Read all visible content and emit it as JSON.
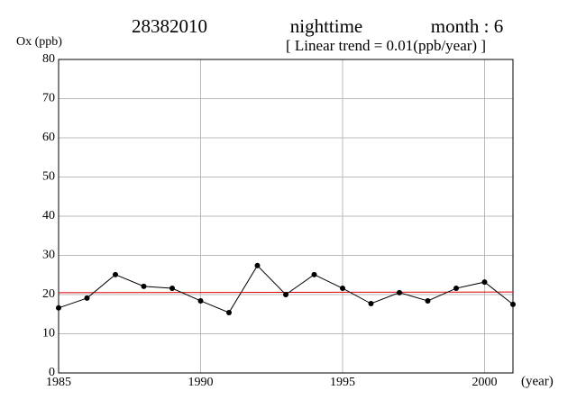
{
  "chart_data": {
    "type": "line",
    "title": "28382010",
    "subtitle": "nighttime",
    "month_label": "month : 6",
    "annotation": "[ Linear trend = 0.01(ppb/year) ]",
    "y_label": "Ox (ppb)",
    "x_label": "(year)",
    "x": [
      1985,
      1986,
      1987,
      1988,
      1989,
      1990,
      1991,
      1992,
      1993,
      1994,
      1995,
      1996,
      1997,
      1998,
      1999,
      2000,
      2001
    ],
    "series": [
      {
        "color": "#000000",
        "values": [
          16.6,
          19.1,
          25.1,
          22.1,
          21.6,
          18.4,
          15.4,
          27.4,
          20.0,
          25.1,
          21.6,
          17.7,
          20.5,
          18.4,
          21.6,
          23.2,
          17.5
        ]
      }
    ],
    "trend": {
      "color": "#e00000",
      "x": [
        1985,
        2001
      ],
      "values": [
        20.5,
        20.66
      ]
    },
    "xlim": [
      1985,
      2001
    ],
    "xticks": [
      1985,
      1990,
      1995,
      2000
    ],
    "ylim": [
      0,
      80
    ],
    "yticks": [
      0,
      10,
      20,
      30,
      40,
      50,
      60,
      70,
      80
    ],
    "grid": true
  }
}
